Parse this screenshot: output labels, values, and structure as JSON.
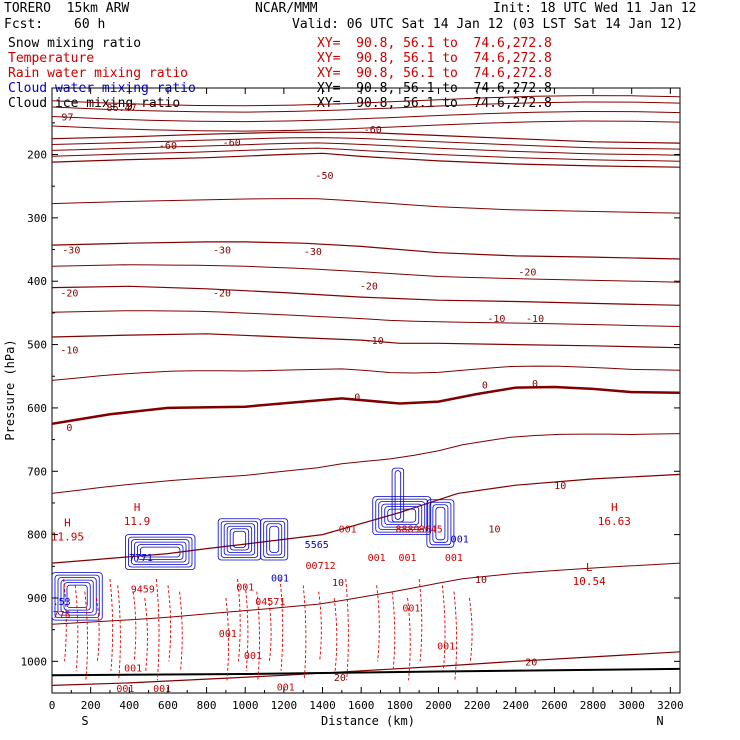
{
  "header": {
    "model": "TORERO  15km ARW",
    "center": "NCAR/MMM",
    "init": "Init: 18 UTC Wed 11 Jan 12",
    "fcst_label": "Fcst:",
    "fcst_value": "60 h",
    "valid": "Valid: 06 UTC Sat 14 Jan 12 (03 LST Sat 14 Jan 12)"
  },
  "legend": [
    {
      "label": "Snow mixing ratio",
      "xy": "XY=  90.8, 56.1 to  74.6,272.8",
      "color": "#000000",
      "xy_color": "#cc0000"
    },
    {
      "label": "Temperature",
      "xy": "XY=  90.8, 56.1 to  74.6,272.8",
      "color": "#cc0000",
      "xy_color": "#cc0000"
    },
    {
      "label": "Rain water mixing ratio",
      "xy": "XY=  90.8, 56.1 to  74.6,272.8",
      "color": "#cc0000",
      "xy_color": "#cc0000"
    },
    {
      "label": "Cloud water mixing ratio",
      "xy": "XY=  90.8, 56.1 to  74.6,272.8",
      "color": "#0000cc",
      "xy_color": "#000000"
    },
    {
      "label": "Cloud ice mixing ratio",
      "xy": "XY=  90.8, 56.1 to  74.6,272.8",
      "color": "#000000",
      "xy_color": "#000000"
    }
  ],
  "chart_data": {
    "type": "contour",
    "xlabel": "Distance (km)",
    "ylabel": "Pressure (hPa)",
    "xlim": [
      0,
      3250
    ],
    "ylim": [
      1050,
      95
    ],
    "x_ticks": [
      0,
      200,
      400,
      600,
      800,
      1000,
      1200,
      1400,
      1600,
      1800,
      2000,
      2200,
      2400,
      2600,
      2800,
      3000,
      3200
    ],
    "y_ticks": [
      200,
      300,
      400,
      500,
      600,
      700,
      800,
      900,
      1000
    ],
    "x_end_labels": {
      "left": "S",
      "right": "N"
    },
    "temperature_contours": [
      {
        "value": -60,
        "points": [
          [
            0,
            175
          ],
          [
            400,
            172
          ],
          [
            800,
            168
          ],
          [
            1200,
            165
          ],
          [
            1600,
            165
          ],
          [
            2000,
            170
          ],
          [
            2400,
            175
          ],
          [
            2800,
            180
          ],
          [
            3250,
            182
          ]
        ]
      },
      {
        "value": -50,
        "points": [
          [
            0,
            212
          ],
          [
            400,
            208
          ],
          [
            800,
            205
          ],
          [
            1200,
            200
          ],
          [
            1400,
            198
          ],
          [
            1600,
            203
          ],
          [
            2000,
            210
          ],
          [
            2400,
            215
          ],
          [
            2800,
            218
          ],
          [
            3250,
            220
          ]
        ]
      },
      {
        "value": -30,
        "points": [
          [
            0,
            343
          ],
          [
            400,
            340
          ],
          [
            800,
            338
          ],
          [
            1000,
            338
          ],
          [
            1300,
            340
          ],
          [
            1600,
            345
          ],
          [
            2000,
            355
          ],
          [
            2400,
            360
          ],
          [
            2800,
            362
          ],
          [
            3250,
            365
          ]
        ]
      },
      {
        "value": -20,
        "points": [
          [
            0,
            410
          ],
          [
            400,
            408
          ],
          [
            800,
            412
          ],
          [
            1200,
            418
          ],
          [
            1600,
            425
          ],
          [
            2000,
            430
          ],
          [
            2400,
            432
          ],
          [
            2800,
            435
          ],
          [
            3250,
            438
          ]
        ]
      },
      {
        "value": -10,
        "points": [
          [
            0,
            488
          ],
          [
            400,
            485
          ],
          [
            800,
            483
          ],
          [
            1200,
            488
          ],
          [
            1600,
            493
          ],
          [
            1800,
            498
          ],
          [
            2000,
            498
          ],
          [
            2400,
            500
          ],
          [
            2800,
            502
          ],
          [
            3250,
            505
          ]
        ]
      },
      {
        "value": 0,
        "points": [
          [
            0,
            625
          ],
          [
            100,
            620
          ],
          [
            300,
            610
          ],
          [
            600,
            600
          ],
          [
            1000,
            598
          ],
          [
            1300,
            590
          ],
          [
            1500,
            585
          ],
          [
            1800,
            593
          ],
          [
            2000,
            590
          ],
          [
            2200,
            578
          ],
          [
            2400,
            568
          ],
          [
            2600,
            567
          ],
          [
            2800,
            570
          ],
          [
            3000,
            575
          ],
          [
            3250,
            576
          ]
        ]
      },
      {
        "value": 10,
        "points": [
          [
            0,
            845
          ],
          [
            200,
            840
          ],
          [
            400,
            835
          ],
          [
            600,
            830
          ],
          [
            800,
            822
          ],
          [
            1000,
            815
          ],
          [
            1400,
            800
          ],
          [
            1800,
            765
          ],
          [
            2100,
            735
          ],
          [
            2400,
            722
          ],
          [
            2800,
            712
          ],
          [
            3250,
            705
          ]
        ]
      },
      {
        "value": 20,
        "points": [
          [
            0,
            1038
          ],
          [
            400,
            1034
          ],
          [
            800,
            1028
          ],
          [
            1200,
            1022
          ],
          [
            1600,
            1015
          ],
          [
            2000,
            1008
          ],
          [
            2400,
            1000
          ],
          [
            2800,
            993
          ],
          [
            3250,
            985
          ]
        ]
      }
    ],
    "temperature_labels": [
      {
        "text": "-60",
        "x": 600,
        "p": 185
      },
      {
        "text": "-60",
        "x": 930,
        "p": 180
      },
      {
        "text": "-60",
        "x": 1660,
        "p": 160
      },
      {
        "text": "-50",
        "x": 1410,
        "p": 232
      },
      {
        "text": "-30",
        "x": 100,
        "p": 350
      },
      {
        "text": "-30",
        "x": 880,
        "p": 350
      },
      {
        "text": "-30",
        "x": 1350,
        "p": 352
      },
      {
        "text": "-20",
        "x": 90,
        "p": 418
      },
      {
        "text": "-20",
        "x": 880,
        "p": 418
      },
      {
        "text": "-20",
        "x": 1640,
        "p": 407
      },
      {
        "text": "-20",
        "x": 2460,
        "p": 385
      },
      {
        "text": "-10",
        "x": 90,
        "p": 508
      },
      {
        "text": "-10",
        "x": 1670,
        "p": 493
      },
      {
        "text": "-10",
        "x": 2300,
        "p": 458
      },
      {
        "text": "-10",
        "x": 2500,
        "p": 458
      },
      {
        "text": "0",
        "x": 90,
        "p": 630
      },
      {
        "text": "0",
        "x": 1580,
        "p": 582
      },
      {
        "text": "0",
        "x": 2240,
        "p": 563
      },
      {
        "text": "0",
        "x": 2500,
        "p": 561
      },
      {
        "text": "10",
        "x": 2630,
        "p": 722
      },
      {
        "text": "10",
        "x": 2290,
        "p": 790
      },
      {
        "text": "10",
        "x": 1480,
        "p": 875
      },
      {
        "text": "10",
        "x": 2220,
        "p": 870
      },
      {
        "text": "20",
        "x": 1490,
        "p": 1025
      },
      {
        "text": "20",
        "x": 2480,
        "p": 1000
      }
    ],
    "extrema": [
      {
        "kind": "H",
        "value": "11.95",
        "x": 80,
        "p": 800,
        "color": "#cc0000"
      },
      {
        "kind": "H",
        "value": "11.9",
        "x": 440,
        "p": 775,
        "color": "#cc0000"
      },
      {
        "kind": "H",
        "value": "16.63",
        "x": 2910,
        "p": 775,
        "color": "#cc0000"
      },
      {
        "kind": "L",
        "value": "10.54",
        "x": 2780,
        "p": 870,
        "color": "#cc0000"
      }
    ],
    "top_labels": [
      {
        "text": "97",
        "x": 80,
        "p": 140
      },
      {
        "text": "86.47",
        "x": 360,
        "p": 125
      }
    ],
    "moisture_labels": [
      {
        "text": "7771",
        "x": 460,
        "p": 835,
        "color": "#0000cc"
      },
      {
        "text": "9459",
        "x": 470,
        "p": 885,
        "color": "#cc0000"
      },
      {
        "text": ".53",
        "x": 50,
        "p": 905,
        "color": "#0000cc"
      },
      {
        "text": "775",
        "x": 50,
        "p": 925,
        "color": "#cc0000"
      },
      {
        "text": "001",
        "x": 1180,
        "p": 868,
        "color": "#0000cc"
      },
      {
        "text": "04571",
        "x": 1130,
        "p": 905,
        "color": "#cc0000"
      },
      {
        "text": "5565",
        "x": 1370,
        "p": 815,
        "color": "#0000cc"
      },
      {
        "text": "00712",
        "x": 1390,
        "p": 848,
        "color": "#cc0000"
      },
      {
        "text": "001",
        "x": 1530,
        "p": 790,
        "color": "#cc0000"
      },
      {
        "text": "001",
        "x": 1680,
        "p": 835,
        "color": "#cc0000"
      },
      {
        "text": "001",
        "x": 1840,
        "p": 835,
        "color": "#cc0000"
      },
      {
        "text": "001",
        "x": 1860,
        "p": 915,
        "color": "#cc0000"
      },
      {
        "text": "001",
        "x": 2080,
        "p": 835,
        "color": "#cc0000"
      },
      {
        "text": "001",
        "x": 2110,
        "p": 806,
        "color": "#0000cc"
      },
      {
        "text": "001",
        "x": 2040,
        "p": 975,
        "color": "#cc0000"
      },
      {
        "text": "001",
        "x": 910,
        "p": 955,
        "color": "#cc0000"
      },
      {
        "text": "001",
        "x": 1040,
        "p": 990,
        "color": "#cc0000"
      },
      {
        "text": "001",
        "x": 420,
        "p": 1010,
        "color": "#cc0000"
      },
      {
        "text": "001",
        "x": 380,
        "p": 1042,
        "color": "#cc0000"
      },
      {
        "text": "001",
        "x": 570,
        "p": 1042,
        "color": "#cc0000"
      },
      {
        "text": "001",
        "x": 1210,
        "p": 1040,
        "color": "#cc0000"
      },
      {
        "text": "001",
        "x": 1000,
        "p": 882,
        "color": "#cc0000"
      },
      {
        "text": "8889",
        "x": 1840,
        "p": 790,
        "color": "#cc0000"
      },
      {
        "text": "8645",
        "x": 1960,
        "p": 790,
        "color": "#cc0000"
      }
    ],
    "cloud_water_boxes": [
      {
        "x0": 0,
        "x1": 260,
        "p0": 860,
        "p1": 935
      },
      {
        "x0": 380,
        "x1": 740,
        "p0": 800,
        "p1": 855
      },
      {
        "x0": 860,
        "x1": 1080,
        "p0": 775,
        "p1": 840
      },
      {
        "x0": 1080,
        "x1": 1220,
        "p0": 775,
        "p1": 840
      },
      {
        "x0": 1660,
        "x1": 1960,
        "p0": 740,
        "p1": 800
      },
      {
        "x0": 1940,
        "x1": 2080,
        "p0": 745,
        "p1": 820
      },
      {
        "x0": 1760,
        "x1": 1820,
        "p0": 695,
        "p1": 780
      }
    ],
    "surface_line": [
      [
        0,
        1022
      ],
      [
        1000,
        1020
      ],
      [
        2000,
        1016
      ],
      [
        3250,
        1012
      ]
    ]
  }
}
